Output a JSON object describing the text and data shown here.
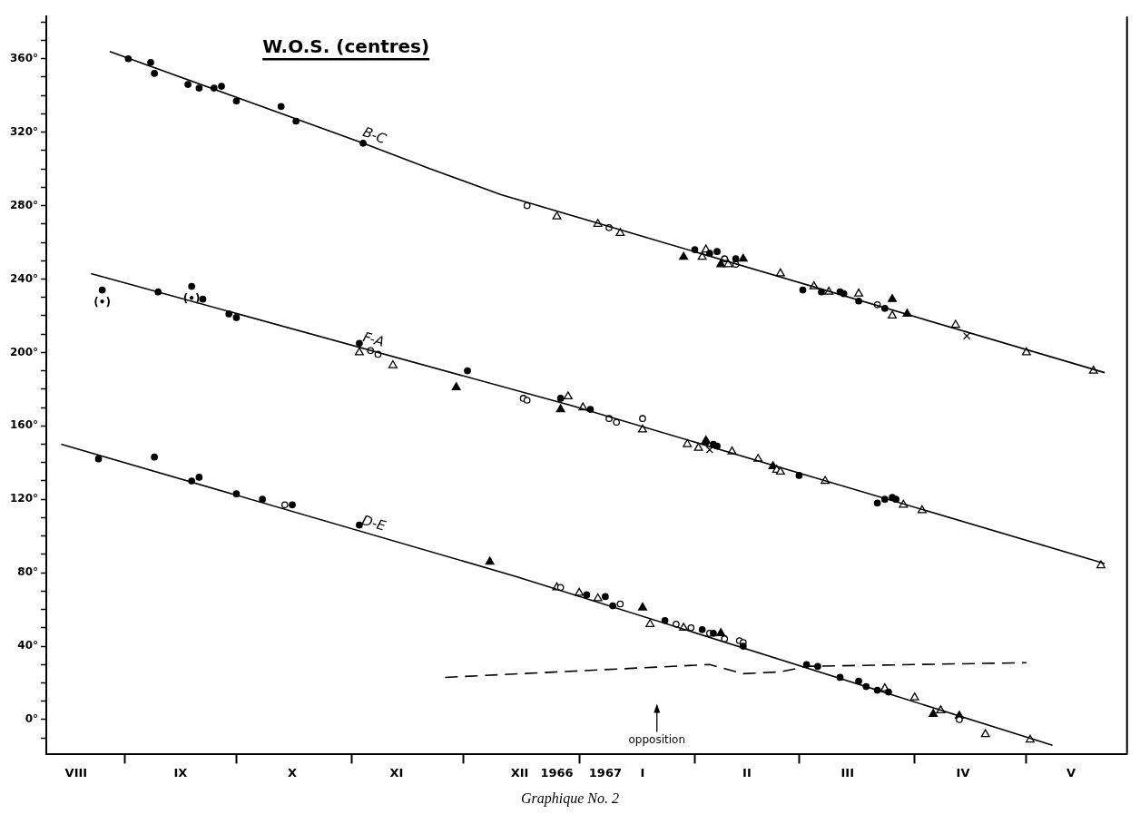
{
  "chart_data": {
    "type": "scatter",
    "title": "W.O.S. (centres)",
    "xlim": [
      "1966-08-11",
      "1967-05-28"
    ],
    "ylim": [
      -19,
      383
    ],
    "xticks": [
      {
        "value": "1966-08-19",
        "label": "VIII"
      },
      {
        "value": "1966-09-01",
        "label": null
      },
      {
        "value": "1966-09-16",
        "label": "IX"
      },
      {
        "value": "1966-10-01",
        "label": null
      },
      {
        "value": "1966-10-16",
        "label": "X"
      },
      {
        "value": "1966-11-01",
        "label": null
      },
      {
        "value": "1966-11-13",
        "label": "XI"
      },
      {
        "value": "1966-12-01",
        "label": null
      },
      {
        "value": "1966-12-16",
        "label": "XII"
      },
      {
        "value": "1966-12-26",
        "label": "1966"
      },
      {
        "value": "1967-01-01",
        "label": null
      },
      {
        "value": "1967-01-08",
        "label": "1967"
      },
      {
        "value": "1967-01-18",
        "label": "I"
      },
      {
        "value": "1967-02-01",
        "label": null
      },
      {
        "value": "1967-02-15",
        "label": "II"
      },
      {
        "value": "1967-03-01",
        "label": null
      },
      {
        "value": "1967-03-14",
        "label": "III"
      },
      {
        "value": "1967-04-01",
        "label": null
      },
      {
        "value": "1967-04-14",
        "label": "IV"
      },
      {
        "value": "1967-05-01",
        "label": null
      },
      {
        "value": "1967-05-13",
        "label": "V"
      }
    ],
    "yticks": [
      {
        "value": -10,
        "label": null
      },
      {
        "value": 0,
        "label": "0°"
      },
      {
        "value": 10,
        "label": null
      },
      {
        "value": 20,
        "label": null
      },
      {
        "value": 30,
        "label": null
      },
      {
        "value": 40,
        "label": "40°"
      },
      {
        "value": 50,
        "label": null
      },
      {
        "value": 60,
        "label": null
      },
      {
        "value": 70,
        "label": null
      },
      {
        "value": 80,
        "label": "80°"
      },
      {
        "value": 90,
        "label": null
      },
      {
        "value": 100,
        "label": null
      },
      {
        "value": 110,
        "label": null
      },
      {
        "value": 120,
        "label": "120°"
      },
      {
        "value": 130,
        "label": null
      },
      {
        "value": 140,
        "label": null
      },
      {
        "value": 150,
        "label": null
      },
      {
        "value": 160,
        "label": "160°"
      },
      {
        "value": 170,
        "label": null
      },
      {
        "value": 180,
        "label": null
      },
      {
        "value": 190,
        "label": null
      },
      {
        "value": 200,
        "label": "200°"
      },
      {
        "value": 210,
        "label": null
      },
      {
        "value": 220,
        "label": null
      },
      {
        "value": 230,
        "label": null
      },
      {
        "value": 240,
        "label": "240°"
      },
      {
        "value": 250,
        "label": null
      },
      {
        "value": 260,
        "label": null
      },
      {
        "value": 270,
        "label": null
      },
      {
        "value": 280,
        "label": "280°"
      },
      {
        "value": 290,
        "label": null
      },
      {
        "value": 300,
        "label": null
      },
      {
        "value": 310,
        "label": null
      },
      {
        "value": 320,
        "label": "320°"
      },
      {
        "value": 330,
        "label": null
      },
      {
        "value": 340,
        "label": null
      },
      {
        "value": 350,
        "label": null
      },
      {
        "value": 360,
        "label": "360°"
      },
      {
        "value": 370,
        "label": null
      },
      {
        "value": 380,
        "label": null
      }
    ],
    "grid": false,
    "legend": false,
    "annotations": [
      "Graphique No. 2",
      "opposition"
    ],
    "series": [
      {
        "type": "line",
        "name": "B-C",
        "color": "#000000",
        "marker": "none",
        "x": [
          "1966-08-28",
          "1966-11-04",
          "1966-11-22",
          "1966-12-11",
          "1967-05-22"
        ],
        "values": [
          364,
          314,
          300,
          286,
          189
        ]
      },
      {
        "type": "line",
        "name": "F-A",
        "color": "#000000",
        "marker": "none",
        "x": [
          "1966-08-23",
          "1966-12-30",
          "1967-05-22"
        ],
        "values": [
          243,
          171,
          85
        ]
      },
      {
        "type": "line",
        "name": "D-E",
        "color": "#000000",
        "marker": "none",
        "x": [
          "1966-08-15",
          "1966-12-15",
          "1967-05-08"
        ],
        "values": [
          150,
          78,
          -14
        ]
      },
      {
        "type": "line",
        "color": "#000000",
        "marker": "none",
        "line_style": "dashed",
        "x": [
          "1966-11-26",
          "1967-02-05",
          "1967-02-14",
          "1967-02-24",
          "1967-03-03",
          "1967-05-01"
        ],
        "values": [
          23,
          30,
          25,
          26,
          29,
          31
        ]
      },
      {
        "color": "#000000",
        "marker": "circle",
        "x": [
          "1966-09-02",
          "1966-09-08",
          "1966-09-09",
          "1966-09-18",
          "1966-09-21",
          "1966-09-25",
          "1966-09-27",
          "1966-10-01",
          "1966-10-13",
          "1966-10-17",
          "1966-11-04",
          "1967-02-01",
          "1967-02-05",
          "1967-02-07",
          "1967-02-12",
          "1967-03-02",
          "1967-03-07",
          "1967-03-12",
          "1967-03-13",
          "1967-03-17",
          "1967-03-24",
          "1966-09-10",
          "1966-09-22",
          "1966-09-29",
          "1966-10-01",
          "1966-11-03",
          "1966-12-02",
          "1966-12-27",
          "1967-01-04",
          "1967-02-04",
          "1967-02-06",
          "1967-02-07",
          "1967-03-01",
          "1967-03-22",
          "1967-03-24",
          "1967-03-26",
          "1967-03-27",
          "1966-08-25",
          "1966-09-09",
          "1966-09-19",
          "1966-09-21",
          "1966-10-01",
          "1966-10-08",
          "1966-10-16",
          "1966-11-03",
          "1967-01-03",
          "1967-01-08",
          "1967-01-10",
          "1967-01-24",
          "1967-02-03",
          "1967-02-06",
          "1967-02-14",
          "1967-03-03",
          "1967-03-06",
          "1967-03-12",
          "1967-03-17",
          "1967-03-19",
          "1967-03-22",
          "1967-03-25"
        ],
        "values": [
          360,
          358,
          352,
          346,
          344,
          344,
          345,
          337,
          334,
          326,
          314,
          256,
          254,
          255,
          251,
          234,
          233,
          233,
          232,
          228,
          224,
          233,
          229,
          221,
          219,
          205,
          190,
          175,
          169,
          151,
          150,
          149,
          133,
          118,
          120,
          121,
          120,
          142,
          143,
          130,
          132,
          123,
          120,
          117,
          106,
          68,
          67,
          62,
          54,
          49,
          47,
          40,
          30,
          29,
          23,
          21,
          18,
          16,
          15
        ]
      },
      {
        "color": "#ffffff",
        "marker": "circle",
        "x": [
          "1966-12-18",
          "1967-01-09",
          "1967-02-09",
          "1967-02-12",
          "1967-03-22",
          "1966-11-06",
          "1966-11-08",
          "1966-12-17",
          "1966-12-18",
          "1967-01-09",
          "1967-01-11",
          "1967-01-18",
          "1966-10-14",
          "1966-12-27",
          "1967-01-12",
          "1967-01-27",
          "1967-01-31",
          "1967-02-05",
          "1967-02-09",
          "1967-02-13",
          "1967-02-14",
          "1967-04-13"
        ],
        "values": [
          280,
          268,
          251,
          248,
          226,
          201,
          199,
          175,
          174,
          164,
          162,
          164,
          117,
          72,
          63,
          52,
          50,
          47,
          44,
          43,
          42,
          0
        ]
      },
      {
        "color": "#ffffff",
        "marker": "triangle",
        "x": [
          "1966-12-26",
          "1967-01-06",
          "1967-01-12",
          "1967-02-04",
          "1967-02-03",
          "1967-02-10",
          "1967-02-24",
          "1967-03-05",
          "1967-03-09",
          "1967-03-17",
          "1967-03-26",
          "1967-04-12",
          "1967-05-01",
          "1967-05-19",
          "1966-11-03",
          "1966-11-12",
          "1966-12-29",
          "1967-01-02",
          "1967-01-18",
          "1967-01-30",
          "1967-02-02",
          "1967-02-11",
          "1967-02-18",
          "1967-02-23",
          "1967-02-24",
          "1967-03-08",
          "1967-03-29",
          "1967-04-03",
          "1967-05-21",
          "1966-12-26",
          "1967-01-01",
          "1967-01-06",
          "1967-01-20",
          "1967-01-29",
          "1967-03-24",
          "1967-04-01",
          "1967-04-08",
          "1967-04-20",
          "1967-05-02"
        ],
        "values": [
          274,
          270,
          265,
          256,
          252,
          248,
          243,
          236,
          233,
          232,
          220,
          215,
          200,
          190,
          200,
          193,
          176,
          170,
          158,
          150,
          148,
          146,
          142,
          136,
          135,
          130,
          117,
          114,
          84,
          72,
          69,
          66,
          52,
          50,
          17,
          12,
          5,
          -8,
          -11
        ]
      },
      {
        "color": "#000000",
        "marker": "triangle",
        "x": [
          "1967-01-29",
          "1967-02-14",
          "1967-02-08",
          "1967-03-26",
          "1967-03-30",
          "1966-11-29",
          "1966-12-27",
          "1967-02-04",
          "1967-02-22",
          "1966-12-08",
          "1967-01-18",
          "1967-02-08",
          "1967-04-06",
          "1967-04-13"
        ],
        "values": [
          252,
          251,
          248,
          229,
          221,
          181,
          169,
          152,
          138,
          86,
          61,
          47,
          3,
          2
        ]
      },
      {
        "color": "#000000",
        "marker": "cross",
        "x": [
          "1967-04-15",
          "1967-02-05"
        ],
        "values": [
          209,
          147
        ]
      },
      {
        "color": "#000000",
        "marker": "circle",
        "x": [
          "1966-08-26",
          "1966-09-19"
        ],
        "values": [
          234,
          236
        ],
        "value_labels": [
          "(•)",
          "(•)"
        ]
      }
    ]
  }
}
